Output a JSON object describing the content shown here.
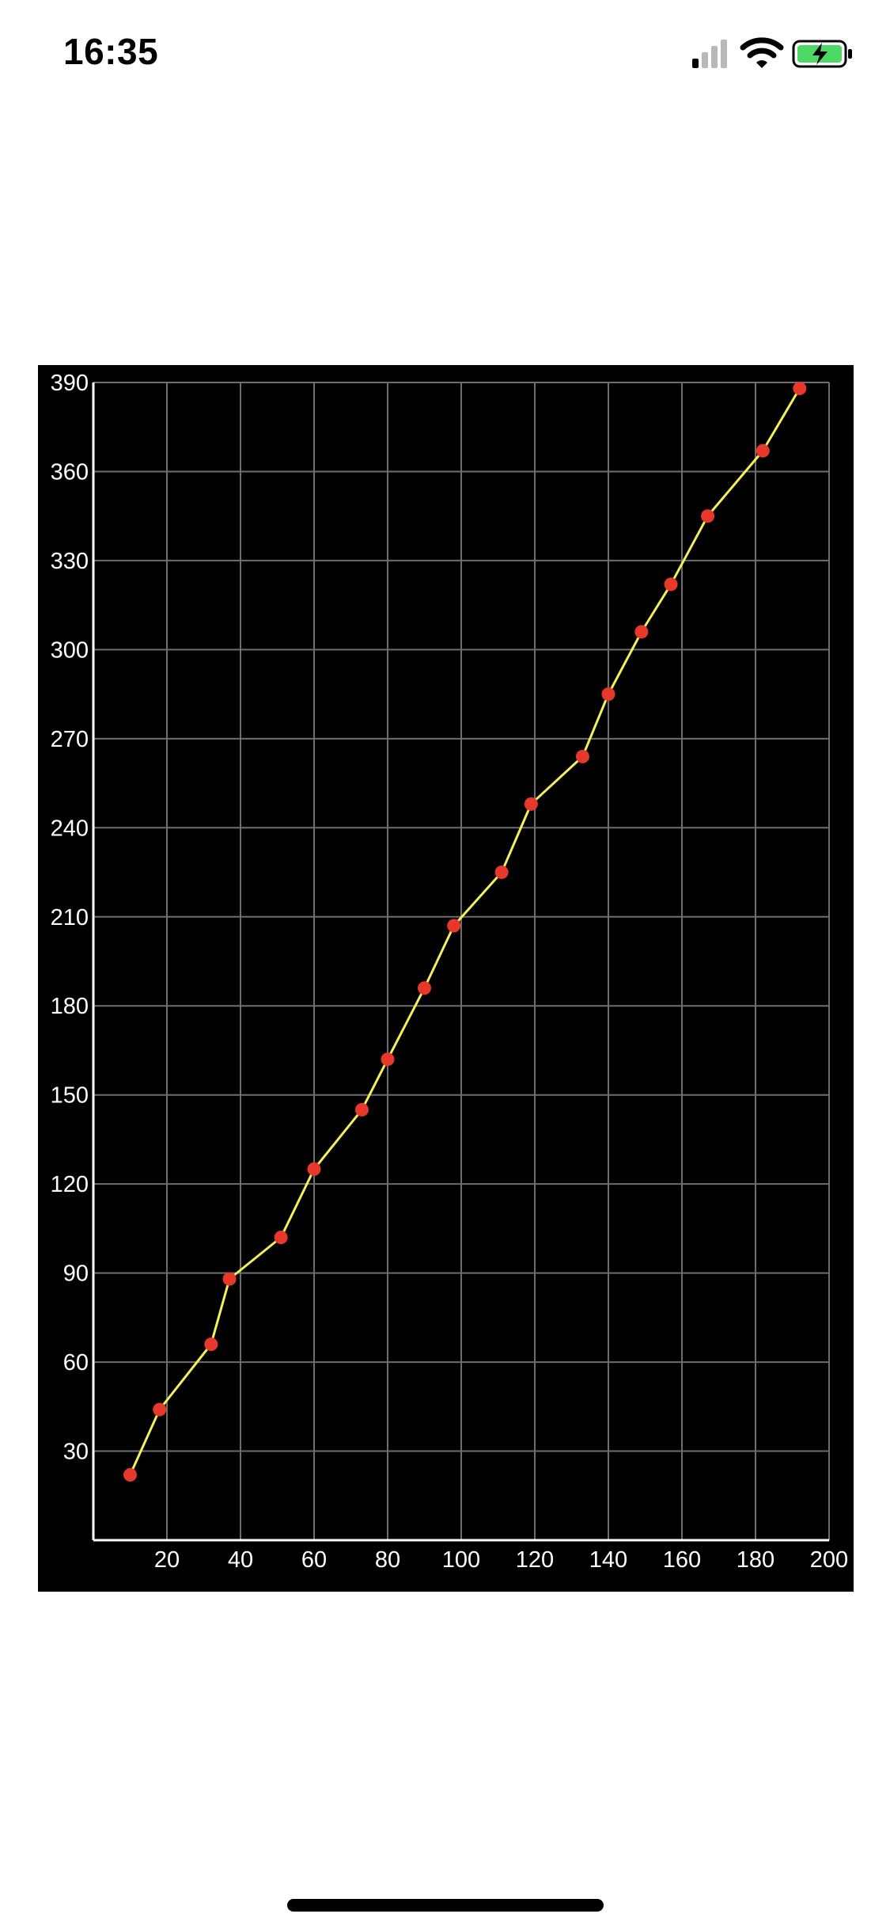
{
  "status_bar": {
    "time": "16:35",
    "icons": [
      "cellular-signal-icon",
      "wifi-icon",
      "battery-charging-icon"
    ],
    "battery_color": "#4cd964"
  },
  "chart_data": {
    "type": "line",
    "title": "",
    "xlabel": "",
    "ylabel": "",
    "xlim": [
      0,
      200
    ],
    "ylim": [
      0,
      390
    ],
    "x_ticks": [
      20,
      40,
      60,
      80,
      100,
      120,
      140,
      160,
      180,
      200
    ],
    "y_ticks": [
      30,
      60,
      90,
      120,
      150,
      180,
      210,
      240,
      270,
      300,
      330,
      360,
      390
    ],
    "grid": true,
    "background": "#000000",
    "grid_color": "#6e6e6e",
    "axis_color": "#ffffff",
    "line_color": "#f5f05a",
    "marker_color": "#e8372b",
    "series": [
      {
        "x": [
          10,
          18,
          32,
          37,
          51,
          60,
          73,
          80,
          90,
          98,
          111,
          119,
          133,
          140,
          149,
          157,
          167,
          182,
          192
        ],
        "y": [
          22,
          44,
          66,
          88,
          102,
          125,
          145,
          162,
          186,
          207,
          225,
          248,
          264,
          285,
          306,
          322,
          345,
          367,
          388
        ]
      }
    ]
  }
}
